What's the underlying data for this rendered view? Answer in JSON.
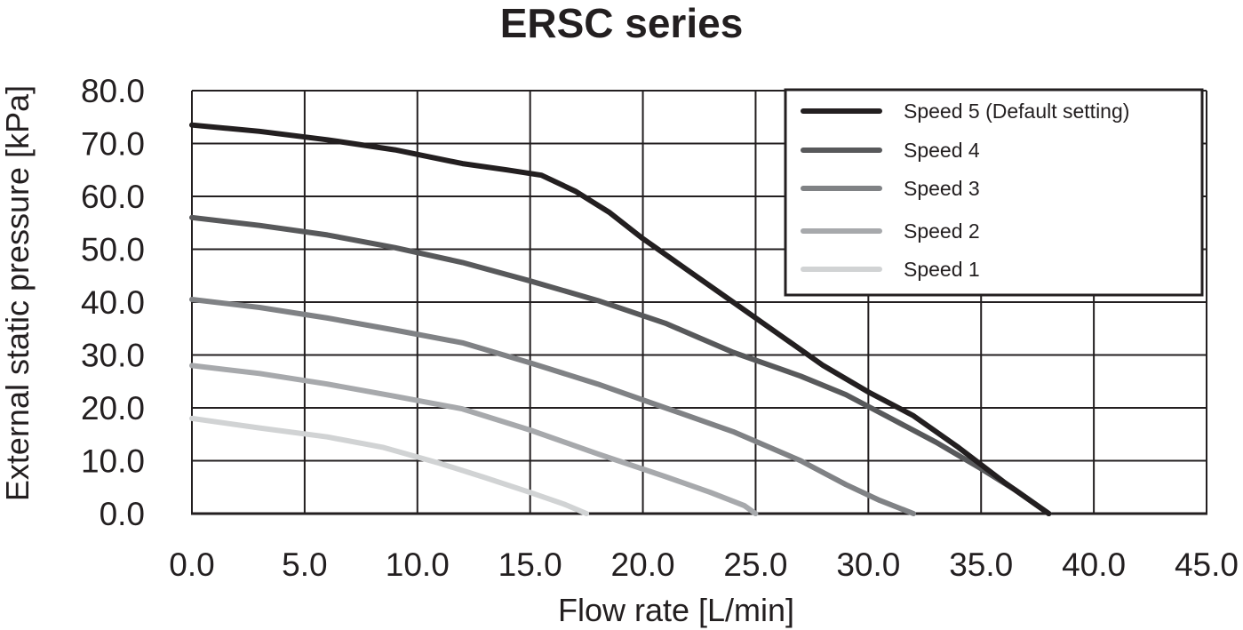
{
  "chart_data": {
    "type": "line",
    "title": "ERSC series",
    "xlabel": "Flow rate [L/min]",
    "ylabel": "External static pressure [kPa]",
    "xlim": [
      0,
      45
    ],
    "ylim": [
      0,
      80
    ],
    "x_ticks": [
      "0.0",
      "5.0",
      "10.0",
      "15.0",
      "20.0",
      "25.0",
      "30.0",
      "35.0",
      "40.0",
      "45.0"
    ],
    "y_ticks": [
      "0.0",
      "10.0",
      "20.0",
      "30.0",
      "40.0",
      "50.0",
      "60.0",
      "70.0",
      "80.0"
    ],
    "grid": true,
    "legend_position": "top-right",
    "series": [
      {
        "name": "Speed 5 (Default setting)",
        "color": "#231f20",
        "points": [
          [
            0,
            73.5
          ],
          [
            3,
            72.3
          ],
          [
            6,
            70.7
          ],
          [
            9,
            68.8
          ],
          [
            12,
            66.2
          ],
          [
            14,
            65
          ],
          [
            15.5,
            64
          ],
          [
            17,
            61
          ],
          [
            18.5,
            57
          ],
          [
            20,
            52
          ],
          [
            22,
            46
          ],
          [
            24,
            40
          ],
          [
            26,
            34
          ],
          [
            28,
            28
          ],
          [
            30,
            23
          ],
          [
            32,
            18.5
          ],
          [
            34,
            12.5
          ],
          [
            36,
            6
          ],
          [
            38,
            0
          ]
        ]
      },
      {
        "name": "Speed 4",
        "color": "#58595b",
        "points": [
          [
            0,
            56
          ],
          [
            3,
            54.5
          ],
          [
            6,
            52.7
          ],
          [
            9,
            50.3
          ],
          [
            12,
            47.5
          ],
          [
            15,
            44
          ],
          [
            18,
            40.3
          ],
          [
            21,
            36
          ],
          [
            24,
            30.5
          ],
          [
            27,
            26
          ],
          [
            29,
            22.5
          ],
          [
            31,
            18
          ],
          [
            33,
            13.5
          ],
          [
            35,
            8.5
          ],
          [
            36.5,
            4.5
          ],
          [
            38,
            0
          ]
        ]
      },
      {
        "name": "Speed 3",
        "color": "#808285",
        "points": [
          [
            0,
            40.5
          ],
          [
            3,
            39
          ],
          [
            6,
            37
          ],
          [
            9,
            34.7
          ],
          [
            12,
            32.3
          ],
          [
            15,
            28.5
          ],
          [
            18,
            24.5
          ],
          [
            21,
            20
          ],
          [
            24,
            15.5
          ],
          [
            27,
            10
          ],
          [
            29,
            5.5
          ],
          [
            30.5,
            2.5
          ],
          [
            32,
            0
          ]
        ]
      },
      {
        "name": "Speed 2",
        "color": "#a7a9ac",
        "points": [
          [
            0,
            28
          ],
          [
            3,
            26.5
          ],
          [
            6,
            24.5
          ],
          [
            9,
            22.2
          ],
          [
            12,
            19.8
          ],
          [
            15,
            15.8
          ],
          [
            18,
            11.3
          ],
          [
            21,
            7
          ],
          [
            23,
            4
          ],
          [
            24.5,
            1.5
          ],
          [
            25,
            0
          ]
        ]
      },
      {
        "name": "Speed 1",
        "color": "#d1d3d4",
        "points": [
          [
            0,
            18
          ],
          [
            3,
            16.2
          ],
          [
            6,
            14.5
          ],
          [
            8.5,
            12.5
          ],
          [
            11,
            9.5
          ],
          [
            13,
            6.8
          ],
          [
            15,
            4
          ],
          [
            16.5,
            1.8
          ],
          [
            17.5,
            0
          ]
        ]
      }
    ]
  }
}
